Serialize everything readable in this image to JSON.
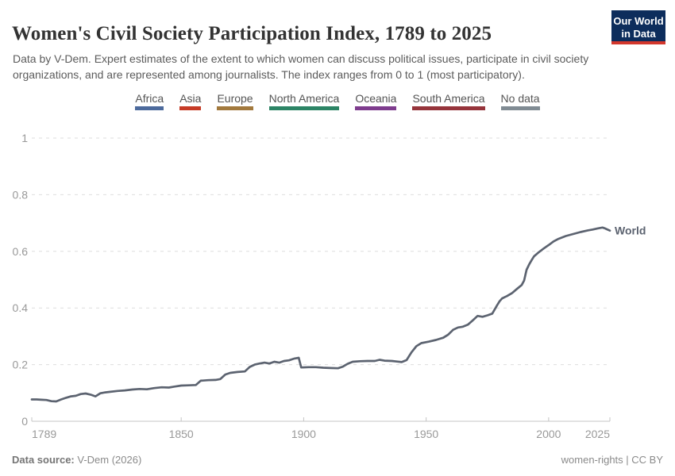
{
  "header": {
    "title": "Women's Civil Society Participation Index, 1789 to 2025",
    "subtitle": "Data by V-Dem. Expert estimates of the extent to which women can discuss political issues, participate in civil society organizations, and are represented among journalists. The index ranges from 0 to 1 (most participatory).",
    "logo": {
      "line1": "Our World",
      "line2": "in Data",
      "bg_color": "#0d2d5c",
      "bar_color": "#d3372c"
    }
  },
  "legend": {
    "items": [
      {
        "label": "Africa",
        "color": "#4c6a9c"
      },
      {
        "label": "Asia",
        "color": "#c63b26"
      },
      {
        "label": "Europe",
        "color": "#a2793d"
      },
      {
        "label": "North America",
        "color": "#2c8465"
      },
      {
        "label": "Oceania",
        "color": "#7e3c8e"
      },
      {
        "label": "South America",
        "color": "#96343b"
      },
      {
        "label": "No data",
        "color": "#808b93"
      }
    ]
  },
  "chart_data": {
    "type": "line",
    "title": "Women's Civil Society Participation Index, 1789 to 2025",
    "xlabel": "",
    "ylabel": "",
    "xlim": [
      1789,
      2025
    ],
    "ylim": [
      0,
      1
    ],
    "x_ticks": [
      1789,
      1850,
      1900,
      1950,
      2000,
      2025
    ],
    "y_ticks": [
      0,
      0.2,
      0.4,
      0.6,
      0.8,
      1
    ],
    "grid": "horizontal-dashed",
    "legend_position": "end-of-line",
    "series": [
      {
        "name": "World",
        "color": "#5c6370",
        "points": [
          [
            1789,
            0.077
          ],
          [
            1791,
            0.077
          ],
          [
            1793,
            0.076
          ],
          [
            1795,
            0.075
          ],
          [
            1797,
            0.071
          ],
          [
            1799,
            0.07
          ],
          [
            1801,
            0.077
          ],
          [
            1803,
            0.083
          ],
          [
            1805,
            0.088
          ],
          [
            1807,
            0.09
          ],
          [
            1809,
            0.096
          ],
          [
            1811,
            0.098
          ],
          [
            1813,
            0.094
          ],
          [
            1815,
            0.088
          ],
          [
            1817,
            0.099
          ],
          [
            1819,
            0.102
          ],
          [
            1821,
            0.104
          ],
          [
            1824,
            0.107
          ],
          [
            1827,
            0.109
          ],
          [
            1830,
            0.112
          ],
          [
            1833,
            0.114
          ],
          [
            1836,
            0.113
          ],
          [
            1839,
            0.117
          ],
          [
            1842,
            0.12
          ],
          [
            1845,
            0.119
          ],
          [
            1847,
            0.122
          ],
          [
            1850,
            0.126
          ],
          [
            1853,
            0.127
          ],
          [
            1856,
            0.128
          ],
          [
            1858,
            0.143
          ],
          [
            1861,
            0.145
          ],
          [
            1864,
            0.146
          ],
          [
            1866,
            0.149
          ],
          [
            1868,
            0.165
          ],
          [
            1870,
            0.171
          ],
          [
            1873,
            0.174
          ],
          [
            1876,
            0.176
          ],
          [
            1878,
            0.192
          ],
          [
            1880,
            0.2
          ],
          [
            1882,
            0.204
          ],
          [
            1884,
            0.207
          ],
          [
            1886,
            0.204
          ],
          [
            1888,
            0.21
          ],
          [
            1890,
            0.207
          ],
          [
            1892,
            0.213
          ],
          [
            1894,
            0.215
          ],
          [
            1896,
            0.221
          ],
          [
            1898,
            0.224
          ],
          [
            1899,
            0.19
          ],
          [
            1902,
            0.191
          ],
          [
            1905,
            0.191
          ],
          [
            1908,
            0.189
          ],
          [
            1911,
            0.188
          ],
          [
            1914,
            0.187
          ],
          [
            1916,
            0.193
          ],
          [
            1918,
            0.203
          ],
          [
            1920,
            0.21
          ],
          [
            1923,
            0.212
          ],
          [
            1926,
            0.213
          ],
          [
            1929,
            0.213
          ],
          [
            1931,
            0.217
          ],
          [
            1933,
            0.214
          ],
          [
            1936,
            0.213
          ],
          [
            1938,
            0.211
          ],
          [
            1940,
            0.209
          ],
          [
            1942,
            0.216
          ],
          [
            1944,
            0.243
          ],
          [
            1946,
            0.265
          ],
          [
            1948,
            0.276
          ],
          [
            1951,
            0.281
          ],
          [
            1954,
            0.287
          ],
          [
            1957,
            0.295
          ],
          [
            1959,
            0.306
          ],
          [
            1961,
            0.323
          ],
          [
            1963,
            0.331
          ],
          [
            1965,
            0.334
          ],
          [
            1967,
            0.341
          ],
          [
            1969,
            0.356
          ],
          [
            1971,
            0.372
          ],
          [
            1973,
            0.369
          ],
          [
            1975,
            0.374
          ],
          [
            1977,
            0.38
          ],
          [
            1979,
            0.41
          ],
          [
            1980,
            0.424
          ],
          [
            1981,
            0.434
          ],
          [
            1983,
            0.442
          ],
          [
            1985,
            0.452
          ],
          [
            1987,
            0.467
          ],
          [
            1989,
            0.481
          ],
          [
            1990,
            0.497
          ],
          [
            1991,
            0.535
          ],
          [
            1992,
            0.553
          ],
          [
            1993,
            0.568
          ],
          [
            1994,
            0.582
          ],
          [
            1996,
            0.597
          ],
          [
            1998,
            0.61
          ],
          [
            2000,
            0.622
          ],
          [
            2002,
            0.635
          ],
          [
            2004,
            0.644
          ],
          [
            2007,
            0.654
          ],
          [
            2010,
            0.661
          ],
          [
            2013,
            0.668
          ],
          [
            2016,
            0.674
          ],
          [
            2018,
            0.677
          ],
          [
            2020,
            0.681
          ],
          [
            2022,
            0.684
          ],
          [
            2023,
            0.681
          ],
          [
            2025,
            0.673
          ]
        ]
      }
    ]
  },
  "footer": {
    "source_label": "Data source:",
    "source_value": " V-Dem (2026)",
    "right_text": "women-rights | CC BY"
  }
}
